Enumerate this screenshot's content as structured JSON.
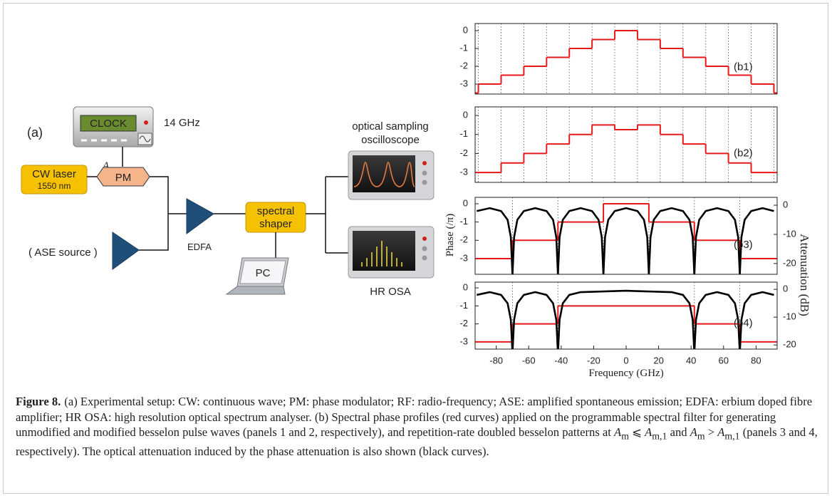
{
  "diagram": {
    "panel_label": "(a)",
    "clock": "CLOCK",
    "clock_freq": "14 GHz",
    "am_symbol": "A",
    "am_sub": "m",
    "laser_line1": "CW laser",
    "laser_line2": "1550 nm",
    "modulator": "PM",
    "ase": "( ASE source )",
    "amplifier": "EDFA",
    "shaper_line1": "spectral",
    "shaper_line2": "shaper",
    "computer": "PC",
    "scope_line1": "optical sampling",
    "scope_line2": "oscilloscope",
    "osa": "HR OSA"
  },
  "chart_data": [
    {
      "type": "step",
      "label": "(b1)",
      "ylabel": "Phase (/π)",
      "xlim": [
        -93,
        93
      ],
      "ylim": [
        -3.56,
        0.4
      ],
      "yticks": [
        0,
        -1,
        -2,
        -3
      ],
      "vlines": [
        -91,
        -77,
        -63,
        -49,
        -35,
        -21,
        -7,
        7,
        21,
        35,
        49,
        63,
        77,
        91
      ],
      "series": [
        {
          "color": "#e8191b",
          "edges": [
            -93,
            -91,
            -77,
            -63,
            -49,
            -35,
            -21,
            -7,
            7,
            21,
            35,
            49,
            63,
            77,
            91,
            93
          ],
          "values": [
            -3.5,
            -3,
            -2.5,
            -2,
            -1.5,
            -1,
            -0.5,
            0,
            -0.5,
            -1,
            -1.5,
            -2,
            -2.5,
            -3,
            -3.5
          ]
        }
      ]
    },
    {
      "type": "step",
      "label": "(b2)",
      "xlim": [
        -93,
        93
      ],
      "ylim": [
        -3.52,
        0.45
      ],
      "yticks": [
        0,
        -1,
        -2,
        -3
      ],
      "vlines": [
        -91,
        -77,
        -63,
        -49,
        -35,
        -21,
        -7,
        7,
        21,
        35,
        49,
        63,
        77,
        91
      ],
      "series": [
        {
          "color": "#e8191b",
          "edges": [
            -93,
            -91,
            -77,
            -63,
            -49,
            -35,
            -21,
            -7,
            7,
            21,
            35,
            49,
            63,
            77,
            91,
            93
          ],
          "values": [
            -3,
            -3,
            -2.5,
            -2,
            -1.5,
            -1,
            -0.5,
            -0.75,
            -0.5,
            -1,
            -1.5,
            -2,
            -2.5,
            -3,
            -3
          ]
        }
      ]
    },
    {
      "type": "step",
      "label": "(b3)",
      "y2label": "Attenuation (dB)",
      "xlim": [
        -93,
        93
      ],
      "ylim": [
        -3.86,
        0.35
      ],
      "yticks": [
        0,
        -1,
        -2,
        -3
      ],
      "y2lim": [
        -23.7,
        2.7
      ],
      "y2ticks": [
        0,
        -10,
        -20
      ],
      "vlines": [
        -70,
        -42,
        -14,
        14,
        42,
        70
      ],
      "series": [
        {
          "color": "#e8191b",
          "edges": [
            -93,
            -70,
            -42,
            -14,
            14,
            42,
            70,
            93
          ],
          "values": [
            -3,
            -2,
            -1,
            0,
            -1,
            -2,
            -3
          ]
        },
        {
          "color": "#000000",
          "axis": "y2",
          "x": [
            -92,
            -84,
            -77,
            -73,
            -71,
            -70,
            -69,
            -67,
            -63,
            -56,
            -49,
            -45,
            -43,
            -42,
            -41,
            -39,
            -35,
            -28,
            -21,
            -17,
            -15,
            -14,
            -13,
            -11,
            -7,
            0,
            7,
            11,
            13,
            14,
            15,
            17,
            21,
            28,
            35,
            39,
            41,
            42,
            43,
            45,
            49,
            56,
            63,
            67,
            69,
            70,
            71,
            73,
            77,
            84,
            91
          ],
          "values": [
            -2,
            -1,
            -2,
            -5,
            -11,
            -24,
            -11,
            -5,
            -2,
            -1,
            -2,
            -5,
            -11,
            -24,
            -11,
            -5,
            -2,
            -1,
            -2,
            -5,
            -11,
            -24,
            -11,
            -5,
            -2,
            -1,
            -2,
            -5,
            -11,
            -24,
            -11,
            -5,
            -2,
            -1,
            -2,
            -5,
            -11,
            -24,
            -11,
            -5,
            -2,
            -1,
            -2,
            -5,
            -11,
            -24,
            -11,
            -5,
            -2,
            -1,
            -2
          ]
        }
      ]
    },
    {
      "type": "step",
      "label": "(b4)",
      "xlabel": "Frequency (GHz)",
      "xlim": [
        -93,
        93
      ],
      "ylim": [
        -3.4,
        0.32
      ],
      "yticks": [
        0,
        -1,
        -2,
        -3
      ],
      "y2lim": [
        -21.5,
        2.6
      ],
      "y2ticks": [
        0,
        -10,
        -20
      ],
      "xticks": [
        -80,
        -60,
        -40,
        -20,
        0,
        20,
        40,
        60,
        80
      ],
      "vlines": [
        -70,
        -42,
        42,
        70
      ],
      "series": [
        {
          "color": "#e8191b",
          "edges": [
            -93,
            -70,
            -42,
            42,
            70,
            93
          ],
          "values": [
            -3,
            -2,
            -1,
            -2,
            -3
          ]
        },
        {
          "color": "#000000",
          "axis": "y2",
          "x": [
            -92,
            -84,
            -77,
            -73,
            -71,
            -70,
            -69,
            -67,
            -63,
            -56,
            -49,
            -45,
            -43,
            -42,
            -41,
            -39,
            -35,
            -28,
            0,
            28,
            35,
            39,
            41,
            42,
            43,
            45,
            49,
            56,
            63,
            67,
            69,
            70,
            71,
            73,
            77,
            84,
            91
          ],
          "values": [
            -2,
            -1,
            -2,
            -5,
            -11,
            -23,
            -11,
            -5,
            -2,
            -1,
            -2,
            -5,
            -11,
            -23,
            -11,
            -5,
            -2,
            -1,
            -0.5,
            -1,
            -2,
            -5,
            -11,
            -23,
            -11,
            -5,
            -2,
            -1,
            -2,
            -5,
            -11,
            -23,
            -11,
            -5,
            -2,
            -1,
            -2
          ]
        }
      ]
    }
  ],
  "caption": {
    "label": "Figure 8.",
    "parts": [
      "(a) Experimental setup: CW: continuous wave; PM: phase modulator; RF: radio-frequency; ASE: amplified spontaneous emission; EDFA: erbium doped fibre amplifier; HR OSA: high resolution optical spectrum analyser. (b) Spectral phase profiles (red curves) applied on the programmable spectral filter for generating unmodified and modified besselon pulse waves (panels 1 and 2, respectively), and repetition-rate doubled besselon patterns at ",
      "A",
      "m",
      " ⩽ ",
      "A",
      "m,1",
      " and ",
      "A",
      "m",
      " > ",
      "A",
      "m,1",
      " (panels 3 and 4, respectively). The optical attenuation induced by the phase attenuation is also shown (black curves)."
    ]
  }
}
